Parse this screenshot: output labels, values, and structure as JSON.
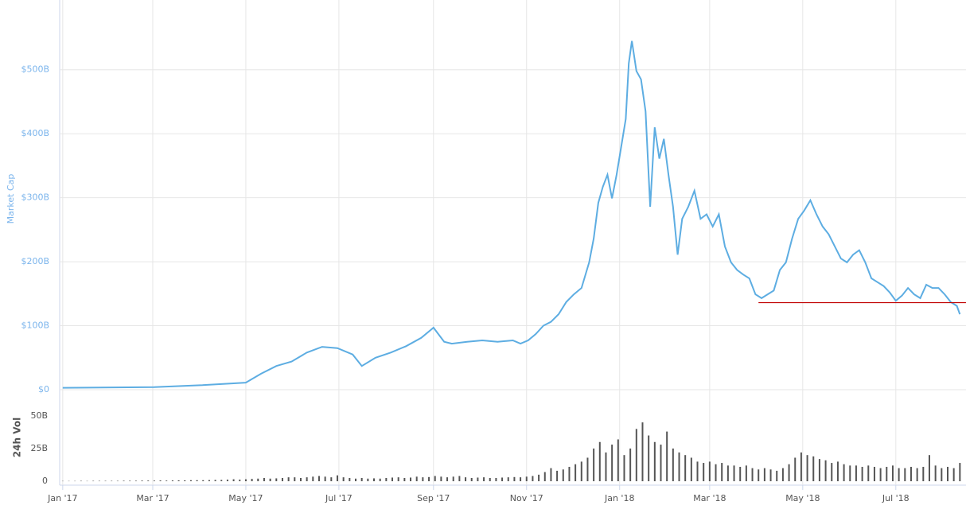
{
  "chart_data": [
    {
      "type": "line",
      "y_label": "Market Cap",
      "color": "#5dade2",
      "grid": true,
      "xlim": [
        -2,
        592
      ],
      "ylim": [
        0,
        609
      ],
      "yticks": [
        {
          "value": 0,
          "label": "$0"
        },
        {
          "value": 100,
          "label": "$100B"
        },
        {
          "value": 200,
          "label": "$200B"
        },
        {
          "value": 300,
          "label": "$300B"
        },
        {
          "value": 400,
          "label": "$400B"
        },
        {
          "value": 500,
          "label": "$500B"
        }
      ],
      "x": [
        0,
        60,
        90,
        120,
        130,
        140,
        150,
        160,
        170,
        180,
        190,
        196,
        205,
        215,
        225,
        235,
        243,
        250,
        255,
        265,
        275,
        285,
        295,
        300,
        305,
        310,
        315,
        320,
        325,
        330,
        335,
        340,
        345,
        348,
        351,
        354,
        357,
        360,
        363,
        366,
        369,
        371,
        373,
        376,
        379,
        382,
        385,
        388,
        391,
        394,
        397,
        400,
        403,
        406,
        410,
        414,
        418,
        422,
        426,
        430,
        434,
        438,
        442,
        446,
        450,
        454,
        458,
        462,
        466,
        470,
        474,
        478,
        482,
        486,
        490,
        494,
        498,
        502,
        506,
        510,
        514,
        518,
        522,
        526,
        530,
        534,
        538,
        542,
        546,
        550,
        554,
        558,
        562,
        566,
        570,
        574,
        578,
        582,
        586,
        588
      ],
      "values": [
        3,
        4,
        7,
        11,
        25,
        37,
        44,
        58,
        67,
        65,
        55,
        37,
        50,
        58,
        68,
        81,
        97,
        75,
        72,
        75,
        77,
        75,
        77,
        72,
        77,
        87,
        100,
        106,
        118,
        137,
        149,
        159,
        199,
        236,
        292,
        317,
        336,
        299,
        336,
        379,
        423,
        510,
        545,
        498,
        485,
        435,
        286,
        410,
        361,
        392,
        336,
        286,
        211,
        267,
        286,
        311,
        267,
        274,
        255,
        274,
        224,
        199,
        187,
        180,
        174,
        149,
        143,
        149,
        155,
        187,
        199,
        236,
        267,
        280,
        296,
        274,
        255,
        243,
        224,
        205,
        199,
        211,
        218,
        199,
        174,
        168,
        162,
        152,
        139,
        147,
        159,
        149,
        143,
        164,
        159,
        159,
        149,
        137,
        131,
        118
      ],
      "reference_line": {
        "value": 136,
        "x": [
          456,
          592
        ],
        "color": "#c00000"
      }
    },
    {
      "type": "bar",
      "y_label": "24h Vol",
      "color": "#555555",
      "xlim": [
        -2,
        592
      ],
      "ylim": [
        -3,
        70
      ],
      "yticks": [
        0,
        {
          "value": 25,
          "label": "25B"
        },
        {
          "value": 50,
          "label": "50B"
        }
      ],
      "xticks": [
        {
          "value": 0,
          "label": "Jan '17"
        },
        {
          "value": 59,
          "label": "Mar '17"
        },
        {
          "value": 120,
          "label": "May '17"
        },
        {
          "value": 181,
          "label": "Jul '17"
        },
        {
          "value": 243,
          "label": "Sep '17"
        },
        {
          "value": 304,
          "label": "Nov '17"
        },
        {
          "value": 365,
          "label": "Jan '18"
        },
        {
          "value": 424,
          "label": "Mar '18"
        },
        {
          "value": 485,
          "label": "May '18"
        },
        {
          "value": 546,
          "label": "Jul '18"
        }
      ],
      "x": [
        0,
        4,
        8,
        12,
        16,
        20,
        24,
        28,
        32,
        36,
        40,
        44,
        48,
        52,
        56,
        60,
        64,
        68,
        72,
        76,
        80,
        84,
        88,
        92,
        96,
        100,
        104,
        108,
        112,
        116,
        120,
        124,
        128,
        132,
        136,
        140,
        144,
        148,
        152,
        156,
        160,
        164,
        168,
        172,
        176,
        180,
        184,
        188,
        192,
        196,
        200,
        204,
        208,
        212,
        216,
        220,
        224,
        228,
        232,
        236,
        240,
        244,
        248,
        252,
        256,
        260,
        264,
        268,
        272,
        276,
        280,
        284,
        288,
        292,
        296,
        300,
        304,
        308,
        312,
        316,
        320,
        324,
        328,
        332,
        336,
        340,
        344,
        348,
        352,
        356,
        360,
        364,
        368,
        372,
        376,
        380,
        384,
        388,
        392,
        396,
        400,
        404,
        408,
        412,
        416,
        420,
        424,
        428,
        432,
        436,
        440,
        444,
        448,
        452,
        456,
        460,
        464,
        468,
        472,
        476,
        480,
        484,
        488,
        492,
        496,
        500,
        504,
        508,
        512,
        516,
        520,
        524,
        528,
        532,
        536,
        540,
        544,
        548,
        552,
        556,
        560,
        564,
        568,
        572,
        576,
        580,
        584,
        588
      ],
      "values": [
        0.2,
        0.2,
        0.2,
        0.3,
        0.2,
        0.3,
        0.3,
        0.3,
        0.3,
        0.3,
        0.4,
        0.4,
        0.4,
        0.5,
        0.5,
        0.5,
        0.6,
        0.5,
        0.6,
        0.7,
        0.7,
        0.8,
        0.8,
        0.8,
        0.9,
        1,
        1,
        1.2,
        1.5,
        1.2,
        1.5,
        1.8,
        2,
        2.5,
        2,
        2.2,
        2.5,
        3,
        3,
        2.5,
        3,
        3.5,
        4,
        3.5,
        3,
        4.5,
        3,
        2.5,
        2,
        2.5,
        2,
        2.2,
        2,
        2.5,
        2.8,
        3,
        2.5,
        2.8,
        3.5,
        3,
        3.2,
        4,
        3.5,
        3,
        3.5,
        4,
        3,
        2.5,
        2.8,
        3,
        2.5,
        2.5,
        2.8,
        3,
        3.2,
        3,
        3.5,
        4,
        5,
        7,
        10,
        8,
        9,
        11,
        13,
        15,
        18,
        25,
        30,
        22,
        28,
        32,
        20,
        25,
        40,
        45,
        35,
        30,
        28,
        38,
        25,
        22,
        20,
        18,
        15,
        14,
        15,
        13,
        14,
        12,
        12,
        11,
        12,
        10,
        9,
        10,
        9,
        8,
        10,
        13,
        18,
        22,
        20,
        19,
        17,
        16,
        14,
        15,
        13,
        12,
        12,
        11,
        12,
        11,
        10,
        11,
        12,
        10,
        10,
        11,
        10,
        11,
        20,
        12,
        10,
        11,
        10,
        14
      ]
    }
  ]
}
